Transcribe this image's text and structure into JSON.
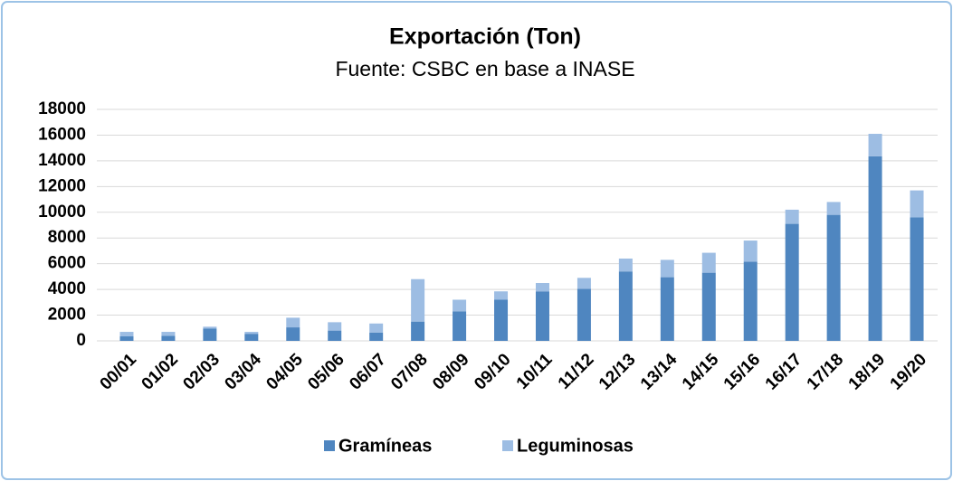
{
  "chart_data": {
    "type": "stacked_bar",
    "title": "Exportación (Ton)",
    "subtitle": "Fuente: CSBC en base a INASE",
    "categories": [
      "00/01",
      "01/02",
      "02/03",
      "03/04",
      "04/05",
      "05/06",
      "06/07",
      "07/08",
      "08/09",
      "09/10",
      "10/11",
      "11/12",
      "12/13",
      "13/14",
      "14/15",
      "15/16",
      "16/17",
      "17/18",
      "18/19",
      "19/20"
    ],
    "series": [
      {
        "name": "Gramíneas",
        "color": "#4f86c0",
        "values": [
          350,
          400,
          950,
          550,
          1050,
          800,
          650,
          1500,
          2300,
          3200,
          3850,
          4050,
          5400,
          4950,
          5300,
          6150,
          9100,
          9800,
          14350,
          9600
        ]
      },
      {
        "name": "Leguminosas",
        "color": "#9dbde3",
        "values": [
          350,
          300,
          150,
          150,
          750,
          650,
          700,
          3300,
          900,
          650,
          650,
          850,
          1000,
          1350,
          1550,
          1650,
          1100,
          1000,
          1750,
          2100
        ]
      }
    ],
    "ylim": [
      0,
      18000
    ],
    "yticks": [
      0,
      2000,
      4000,
      6000,
      8000,
      10000,
      12000,
      14000,
      16000,
      18000
    ],
    "grid": true,
    "legend": "bottom"
  }
}
